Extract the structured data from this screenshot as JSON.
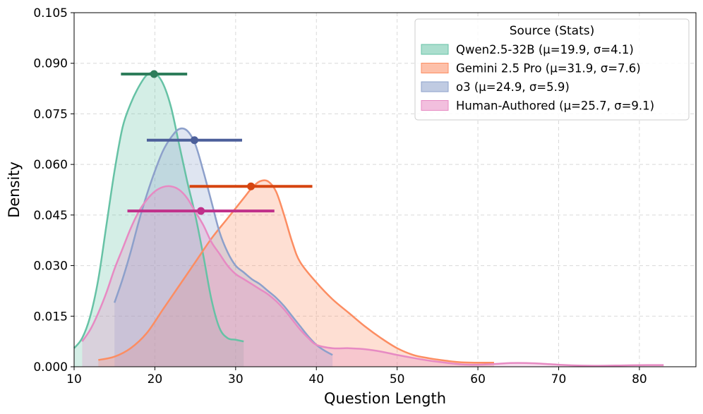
{
  "chart_data": {
    "type": "area",
    "title": "",
    "xlabel": "Question Length",
    "ylabel": "Density",
    "xlim": [
      10,
      87
    ],
    "ylim": [
      0,
      0.105
    ],
    "xticks": [
      10,
      20,
      30,
      40,
      50,
      60,
      70,
      80
    ],
    "yticks": [
      0,
      0.015,
      0.03,
      0.045,
      0.06,
      0.075,
      0.09,
      0.105
    ],
    "xtick_labels": [
      "10",
      "20",
      "30",
      "40",
      "50",
      "60",
      "70",
      "80"
    ],
    "ytick_labels": [
      "0.000",
      "0.015",
      "0.030",
      "0.045",
      "0.060",
      "0.075",
      "0.090",
      "0.105"
    ],
    "grid": true,
    "legend": {
      "title": "Source (Stats)",
      "placement": "top-right"
    },
    "series": [
      {
        "name": "Qwen2.5-32B  (μ=19.9, σ=4.1)",
        "color": "#66c2a5",
        "marker_color": "#2e7d5b",
        "mean": 19.9,
        "std": 4.1,
        "marker_y": 0.0868,
        "points": [
          [
            10,
            0.0055
          ],
          [
            11,
            0.0085
          ],
          [
            12,
            0.015
          ],
          [
            13,
            0.026
          ],
          [
            14,
            0.042
          ],
          [
            15,
            0.058
          ],
          [
            16,
            0.071
          ],
          [
            17,
            0.078
          ],
          [
            18,
            0.083
          ],
          [
            19,
            0.0865
          ],
          [
            20,
            0.087
          ],
          [
            21,
            0.084
          ],
          [
            22,
            0.077
          ],
          [
            23,
            0.066
          ],
          [
            24,
            0.055
          ],
          [
            25,
            0.045
          ],
          [
            26,
            0.033
          ],
          [
            27,
            0.02
          ],
          [
            28,
            0.0115
          ],
          [
            29,
            0.0085
          ],
          [
            30,
            0.008
          ],
          [
            31,
            0.0075
          ]
        ]
      },
      {
        "name": "Gemini 2.5 Pro  (μ=31.9, σ=7.6)",
        "color": "#fc8d62",
        "marker_color": "#d64510",
        "mean": 31.9,
        "std": 7.6,
        "marker_y": 0.0535,
        "points": [
          [
            13,
            0.002
          ],
          [
            15,
            0.003
          ],
          [
            17,
            0.0055
          ],
          [
            19,
            0.01
          ],
          [
            21,
            0.017
          ],
          [
            23,
            0.024
          ],
          [
            25,
            0.031
          ],
          [
            27,
            0.038
          ],
          [
            29,
            0.044
          ],
          [
            31,
            0.05
          ],
          [
            32,
            0.053
          ],
          [
            33,
            0.055
          ],
          [
            34,
            0.055
          ],
          [
            35,
            0.052
          ],
          [
            36,
            0.045
          ],
          [
            37,
            0.037
          ],
          [
            38,
            0.031
          ],
          [
            40,
            0.025
          ],
          [
            42,
            0.02
          ],
          [
            44,
            0.016
          ],
          [
            46,
            0.012
          ],
          [
            48,
            0.0085
          ],
          [
            50,
            0.0055
          ],
          [
            52,
            0.0035
          ],
          [
            54,
            0.0025
          ],
          [
            56,
            0.0018
          ],
          [
            58,
            0.0013
          ],
          [
            60,
            0.0012
          ],
          [
            62,
            0.0012
          ]
        ]
      },
      {
        "name": "o3  (μ=24.9, σ=5.9)",
        "color": "#8da0cb",
        "marker_color": "#4c5f9a",
        "mean": 24.9,
        "std": 5.9,
        "marker_y": 0.0672,
        "points": [
          [
            15,
            0.019
          ],
          [
            16,
            0.026
          ],
          [
            17,
            0.034
          ],
          [
            18,
            0.043
          ],
          [
            19,
            0.051
          ],
          [
            20,
            0.058
          ],
          [
            21,
            0.064
          ],
          [
            22,
            0.068
          ],
          [
            23,
            0.0705
          ],
          [
            24,
            0.07
          ],
          [
            25,
            0.066
          ],
          [
            26,
            0.058
          ],
          [
            27,
            0.049
          ],
          [
            28,
            0.04
          ],
          [
            29,
            0.034
          ],
          [
            30,
            0.03
          ],
          [
            31,
            0.028
          ],
          [
            32,
            0.026
          ],
          [
            33,
            0.0245
          ],
          [
            34,
            0.0225
          ],
          [
            35,
            0.0205
          ],
          [
            36,
            0.018
          ],
          [
            37,
            0.015
          ],
          [
            38,
            0.012
          ],
          [
            39,
            0.009
          ],
          [
            40,
            0.0065
          ],
          [
            41,
            0.0048
          ],
          [
            42,
            0.0035
          ]
        ]
      },
      {
        "name": "Human-Authored  (μ=25.7, σ=9.1)",
        "color": "#e78ac3",
        "marker_color": "#c0308a",
        "mean": 25.7,
        "std": 9.1,
        "marker_y": 0.0462,
        "points": [
          [
            11,
            0.0075
          ],
          [
            12,
            0.011
          ],
          [
            13,
            0.016
          ],
          [
            14,
            0.022
          ],
          [
            15,
            0.029
          ],
          [
            16,
            0.035
          ],
          [
            17,
            0.041
          ],
          [
            18,
            0.046
          ],
          [
            19,
            0.0495
          ],
          [
            20,
            0.052
          ],
          [
            21,
            0.0533
          ],
          [
            22,
            0.0535
          ],
          [
            23,
            0.0525
          ],
          [
            24,
            0.05
          ],
          [
            25,
            0.046
          ],
          [
            26,
            0.042
          ],
          [
            27,
            0.037
          ],
          [
            28,
            0.0335
          ],
          [
            29,
            0.03
          ],
          [
            30,
            0.0275
          ],
          [
            31,
            0.026
          ],
          [
            32,
            0.0245
          ],
          [
            33,
            0.023
          ],
          [
            34,
            0.0215
          ],
          [
            35,
            0.0195
          ],
          [
            36,
            0.017
          ],
          [
            37,
            0.014
          ],
          [
            38,
            0.011
          ],
          [
            39,
            0.0085
          ],
          [
            40,
            0.0065
          ],
          [
            42,
            0.0055
          ],
          [
            44,
            0.0055
          ],
          [
            46,
            0.0052
          ],
          [
            48,
            0.0045
          ],
          [
            50,
            0.0035
          ],
          [
            52,
            0.0026
          ],
          [
            54,
            0.0018
          ],
          [
            56,
            0.0012
          ],
          [
            58,
            0.0007
          ],
          [
            60,
            0.0006
          ],
          [
            62,
            0.0008
          ],
          [
            64,
            0.0011
          ],
          [
            66,
            0.0011
          ],
          [
            68,
            0.0009
          ],
          [
            70,
            0.0006
          ],
          [
            72,
            0.0004
          ],
          [
            75,
            0.0003
          ],
          [
            78,
            0.0004
          ],
          [
            81,
            0.0005
          ],
          [
            83,
            0.0005
          ]
        ]
      }
    ]
  }
}
